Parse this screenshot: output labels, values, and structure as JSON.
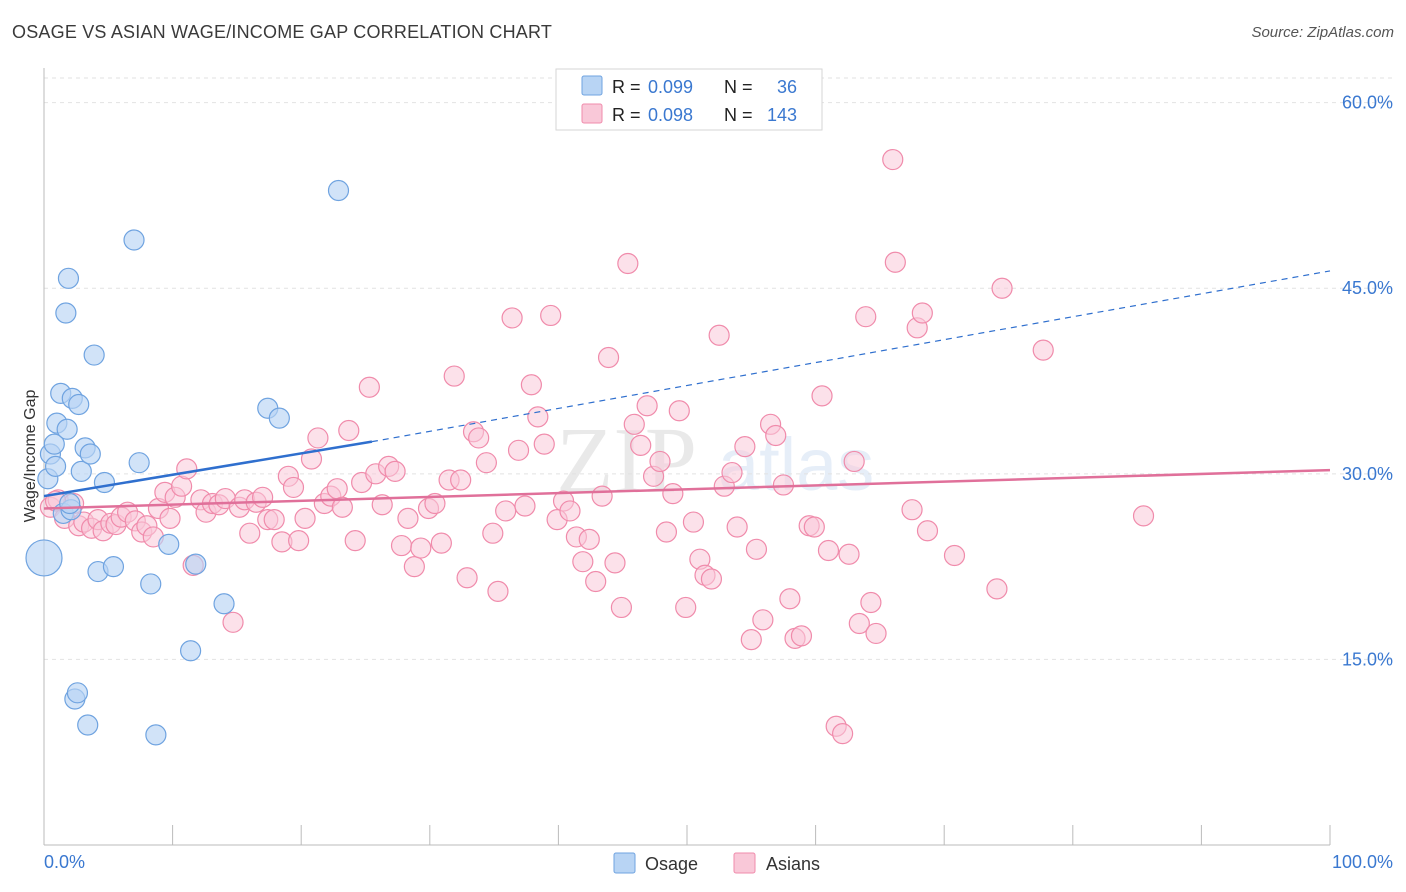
{
  "header": {
    "title": "OSAGE VS ASIAN WAGE/INCOME GAP CORRELATION CHART",
    "source": "Source: ZipAtlas.com"
  },
  "colors": {
    "osage_fill": "#b8d4f4",
    "osage_stroke": "#6fa3e0",
    "osage_line": "#2f6fce",
    "asians_fill": "#f9c8d8",
    "asians_stroke": "#f08bab",
    "asians_line": "#e0709a",
    "value_text": "#3a78d0",
    "grid": "#e2e2e2"
  },
  "legend": {
    "rows": [
      {
        "r_label": "R =",
        "r_value": "0.099",
        "n_label": "N =",
        "n_value": "36"
      },
      {
        "r_label": "R =",
        "r_value": "0.098",
        "n_label": "N =",
        "n_value": "143"
      }
    ]
  },
  "watermark": {
    "zip": "ZIP",
    "atlas": "atlas"
  },
  "chart_data": {
    "type": "scatter",
    "title": "OSAGE VS ASIAN WAGE/INCOME GAP CORRELATION CHART",
    "xlabel": "",
    "ylabel": "Wage/Income Gap",
    "xlim": [
      0,
      100
    ],
    "ylim": [
      0,
      62.8
    ],
    "x_tick_labels": [
      "0.0%",
      "100.0%"
    ],
    "y_ticks": [
      15,
      30,
      45,
      60
    ],
    "y_tick_labels": [
      "15.0%",
      "30.0%",
      "45.0%",
      "60.0%"
    ],
    "grid": true,
    "legend": [
      "Osage",
      "Asians"
    ],
    "series": [
      {
        "name": "Osage",
        "r": 0.099,
        "n": 36,
        "trend": {
          "x0": 0,
          "y0": 28.2,
          "x1": 25.5,
          "y1": 32.6,
          "dash_x1": 100,
          "dash_y1": 46.4
        },
        "points": [
          [
            0.0,
            23.2
          ],
          [
            0.3,
            29.6
          ],
          [
            0.5,
            31.6
          ],
          [
            0.8,
            32.4
          ],
          [
            0.9,
            30.6
          ],
          [
            1.0,
            34.1
          ],
          [
            1.3,
            36.5
          ],
          [
            1.5,
            26.8
          ],
          [
            1.7,
            43.0
          ],
          [
            1.8,
            33.6
          ],
          [
            1.9,
            45.8
          ],
          [
            2.1,
            27.1
          ],
          [
            2.2,
            36.1
          ],
          [
            2.4,
            11.8
          ],
          [
            2.6,
            12.3
          ],
          [
            2.7,
            35.6
          ],
          [
            2.9,
            30.2
          ],
          [
            3.2,
            32.1
          ],
          [
            3.4,
            9.7
          ],
          [
            3.6,
            31.6
          ],
          [
            3.9,
            39.6
          ],
          [
            4.2,
            22.1
          ],
          [
            4.7,
            29.3
          ],
          [
            5.4,
            22.5
          ],
          [
            7.0,
            48.9
          ],
          [
            7.4,
            30.9
          ],
          [
            8.3,
            21.1
          ],
          [
            8.7,
            8.9
          ],
          [
            9.7,
            24.3
          ],
          [
            11.4,
            15.7
          ],
          [
            11.8,
            22.7
          ],
          [
            14.0,
            19.5
          ],
          [
            17.4,
            35.3
          ],
          [
            18.3,
            34.5
          ],
          [
            22.9,
            52.9
          ],
          [
            2.0,
            27.6
          ]
        ],
        "sizes": [
          18,
          10,
          10,
          10,
          10,
          10,
          10,
          10,
          10,
          10,
          10,
          10,
          10,
          10,
          10,
          10,
          10,
          10,
          10,
          10,
          10,
          10,
          10,
          10,
          10,
          10,
          10,
          10,
          10,
          10,
          10,
          10,
          10,
          10,
          10,
          10
        ]
      },
      {
        "name": "Asians",
        "r": 0.098,
        "n": 143,
        "trend": {
          "x0": 0,
          "y0": 27.2,
          "x1": 100,
          "y1": 30.3
        },
        "points": [
          [
            0.5,
            27.3
          ],
          [
            1.1,
            27.9
          ],
          [
            1.6,
            26.4
          ],
          [
            2.3,
            27.6
          ],
          [
            2.7,
            25.8
          ],
          [
            3.1,
            26.1
          ],
          [
            3.7,
            25.6
          ],
          [
            4.2,
            26.3
          ],
          [
            4.6,
            25.4
          ],
          [
            5.2,
            26.0
          ],
          [
            5.6,
            25.9
          ],
          [
            6.0,
            26.5
          ],
          [
            6.5,
            26.9
          ],
          [
            7.1,
            26.2
          ],
          [
            7.6,
            25.3
          ],
          [
            8.0,
            25.8
          ],
          [
            8.5,
            24.9
          ],
          [
            8.9,
            27.2
          ],
          [
            9.4,
            28.5
          ],
          [
            9.8,
            26.4
          ],
          [
            10.2,
            28.1
          ],
          [
            10.7,
            29.0
          ],
          [
            11.1,
            30.4
          ],
          [
            11.6,
            22.6
          ],
          [
            12.2,
            27.9
          ],
          [
            12.6,
            26.9
          ],
          [
            13.1,
            27.6
          ],
          [
            13.6,
            27.5
          ],
          [
            14.1,
            28.0
          ],
          [
            14.7,
            18.0
          ],
          [
            15.2,
            27.3
          ],
          [
            15.6,
            27.9
          ],
          [
            16.0,
            25.2
          ],
          [
            16.5,
            27.7
          ],
          [
            17.0,
            28.1
          ],
          [
            17.4,
            26.3
          ],
          [
            17.9,
            26.3
          ],
          [
            18.5,
            24.5
          ],
          [
            19.0,
            29.8
          ],
          [
            19.4,
            28.9
          ],
          [
            19.8,
            24.6
          ],
          [
            20.3,
            26.4
          ],
          [
            20.8,
            31.2
          ],
          [
            21.3,
            32.9
          ],
          [
            21.8,
            27.6
          ],
          [
            22.3,
            28.2
          ],
          [
            22.8,
            28.8
          ],
          [
            23.2,
            27.3
          ],
          [
            23.7,
            33.5
          ],
          [
            24.2,
            24.6
          ],
          [
            24.7,
            29.3
          ],
          [
            25.3,
            37.0
          ],
          [
            25.8,
            30.0
          ],
          [
            26.3,
            27.5
          ],
          [
            26.8,
            30.6
          ],
          [
            27.3,
            30.2
          ],
          [
            27.8,
            24.2
          ],
          [
            28.3,
            26.4
          ],
          [
            28.8,
            22.5
          ],
          [
            29.3,
            24.0
          ],
          [
            29.9,
            27.2
          ],
          [
            30.4,
            27.6
          ],
          [
            30.9,
            24.4
          ],
          [
            31.5,
            29.5
          ],
          [
            31.9,
            37.9
          ],
          [
            32.4,
            29.5
          ],
          [
            32.9,
            21.6
          ],
          [
            33.4,
            33.4
          ],
          [
            33.8,
            32.9
          ],
          [
            34.4,
            30.9
          ],
          [
            34.9,
            25.2
          ],
          [
            35.3,
            20.5
          ],
          [
            35.9,
            27.0
          ],
          [
            36.4,
            42.6
          ],
          [
            36.9,
            31.9
          ],
          [
            37.4,
            27.4
          ],
          [
            37.9,
            37.2
          ],
          [
            38.4,
            34.6
          ],
          [
            38.9,
            32.4
          ],
          [
            39.4,
            42.8
          ],
          [
            39.9,
            26.3
          ],
          [
            40.4,
            27.8
          ],
          [
            40.9,
            27.0
          ],
          [
            41.4,
            24.9
          ],
          [
            41.9,
            22.9
          ],
          [
            42.4,
            24.7
          ],
          [
            42.9,
            21.3
          ],
          [
            43.4,
            28.2
          ],
          [
            43.9,
            39.4
          ],
          [
            44.4,
            22.8
          ],
          [
            44.9,
            19.2
          ],
          [
            45.4,
            47.0
          ],
          [
            45.9,
            34.0
          ],
          [
            46.4,
            32.3
          ],
          [
            46.9,
            35.5
          ],
          [
            47.4,
            29.8
          ],
          [
            47.9,
            31.0
          ],
          [
            48.4,
            25.3
          ],
          [
            48.9,
            28.4
          ],
          [
            49.4,
            35.1
          ],
          [
            49.9,
            19.2
          ],
          [
            50.5,
            26.1
          ],
          [
            51.0,
            23.1
          ],
          [
            51.4,
            21.8
          ],
          [
            51.9,
            21.5
          ],
          [
            52.5,
            41.2
          ],
          [
            52.9,
            29.0
          ],
          [
            53.5,
            30.1
          ],
          [
            53.9,
            25.7
          ],
          [
            54.5,
            32.2
          ],
          [
            55.0,
            16.6
          ],
          [
            55.4,
            23.9
          ],
          [
            55.9,
            18.2
          ],
          [
            56.5,
            34.0
          ],
          [
            56.9,
            33.1
          ],
          [
            57.5,
            29.1
          ],
          [
            58.0,
            19.9
          ],
          [
            58.4,
            16.7
          ],
          [
            58.9,
            16.9
          ],
          [
            59.5,
            25.8
          ],
          [
            59.9,
            25.7
          ],
          [
            60.5,
            36.3
          ],
          [
            61.0,
            23.8
          ],
          [
            61.6,
            9.6
          ],
          [
            62.1,
            9.0
          ],
          [
            62.6,
            23.5
          ],
          [
            63.0,
            31.0
          ],
          [
            63.4,
            17.9
          ],
          [
            63.9,
            42.7
          ],
          [
            64.3,
            19.6
          ],
          [
            64.7,
            17.1
          ],
          [
            66.0,
            55.4
          ],
          [
            66.2,
            47.1
          ],
          [
            67.5,
            27.1
          ],
          [
            67.9,
            41.8
          ],
          [
            68.3,
            43.0
          ],
          [
            68.7,
            25.4
          ],
          [
            70.8,
            23.4
          ],
          [
            74.1,
            20.7
          ],
          [
            74.5,
            45.0
          ],
          [
            77.7,
            40.0
          ],
          [
            85.5,
            26.6
          ],
          [
            0.9,
            27.8
          ]
        ]
      }
    ]
  },
  "bottom_legend": {
    "items": [
      {
        "label": "Osage"
      },
      {
        "label": "Asians"
      }
    ]
  }
}
